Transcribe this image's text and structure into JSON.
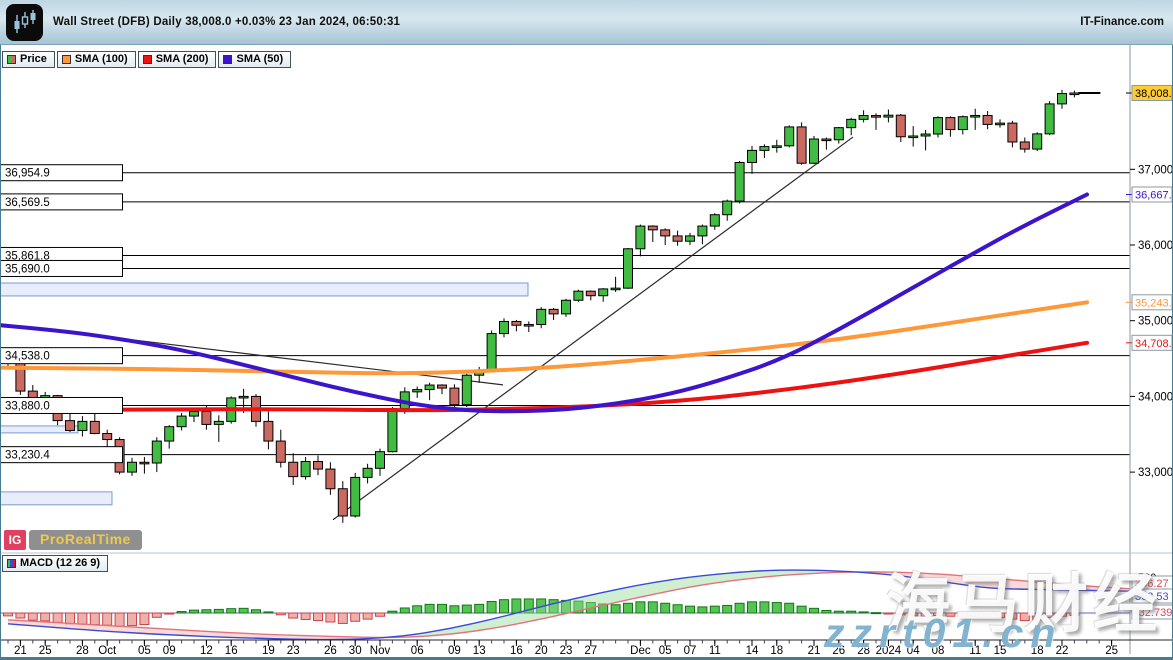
{
  "header": {
    "instrument": "Wall Street (DFB)",
    "timeframe": "Daily",
    "last_price": "38,008.0",
    "change_pct": "+0.03%",
    "datetime": "23 Jan 2024, 06:50:31",
    "brand": "IT-Finance.com"
  },
  "legend": {
    "tabs": [
      {
        "label": "Price",
        "type": "dual",
        "colors": [
          "#41bb41",
          "#c96a62"
        ]
      },
      {
        "label": "SMA (100)",
        "type": "solid",
        "colors": [
          "#ff9838"
        ]
      },
      {
        "label": "SMA (200)",
        "type": "solid",
        "colors": [
          "#ee1111"
        ]
      },
      {
        "label": "SMA (50)",
        "type": "solid",
        "colors": [
          "#3b14cc"
        ]
      }
    ]
  },
  "logo": {
    "ig": "IG",
    "prorealtime": "ProRealTime"
  },
  "indicator_tab": {
    "label": "MACD (12 26 9)",
    "icon_colors": [
      "#41bb41",
      "#3b49d8",
      "#ee1111"
    ]
  },
  "watermarks": {
    "cn": "海马财经",
    "site": "zzrt01.cn"
  },
  "chart_data": {
    "type": "candlestick",
    "title": "Wall Street (DFB) Daily",
    "ylim": [
      31950,
      38400
    ],
    "colors": {
      "up": "#41bb41",
      "down": "#c96a62",
      "wick": "#000000",
      "sma50": "#3b14cc",
      "sma100": "#ff9838",
      "sma200": "#ee1111",
      "macd_line": "#3b49d8",
      "signal_line": "#e2737c",
      "hist_up_fill": "#55c455",
      "hist_up_stroke": "#117711",
      "hist_down_fill": "#eeb0ac",
      "hist_down_stroke": "#cc4444",
      "fill_above": "rgba(150,220,150,0.45)",
      "fill_below": "rgba(245,170,170,0.45)",
      "zone_fill": "#e7edfb",
      "zone_stroke": "#7a9ad8",
      "level_line": "#000000",
      "trend_line": "#2a2a2a",
      "axis_line": "#8699a6",
      "window_border": "#487b90",
      "price_marker_bg": "#ffcc33"
    },
    "y_axis": {
      "ticks": [
        [
          37000,
          "37,000"
        ],
        [
          36000,
          "36,000"
        ],
        [
          35000,
          "35,000"
        ],
        [
          34000,
          "34,000"
        ],
        [
          33000,
          "33,000"
        ]
      ]
    },
    "x_ticks": [
      [
        1,
        "21"
      ],
      [
        3,
        "25"
      ],
      [
        6,
        "28"
      ],
      [
        8,
        "Oct"
      ],
      [
        11,
        "05"
      ],
      [
        13,
        "09"
      ],
      [
        16,
        "12"
      ],
      [
        18,
        "16"
      ],
      [
        21,
        "19"
      ],
      [
        23,
        "23"
      ],
      [
        26,
        "26"
      ],
      [
        28,
        "30"
      ],
      [
        30,
        "Nov"
      ],
      [
        33,
        "06"
      ],
      [
        36,
        "09"
      ],
      [
        38,
        "13"
      ],
      [
        41,
        "16"
      ],
      [
        43,
        "20"
      ],
      [
        45,
        "23"
      ],
      [
        47,
        "27"
      ],
      [
        51,
        "Dec"
      ],
      [
        53,
        "05"
      ],
      [
        55,
        "07"
      ],
      [
        57,
        "11"
      ],
      [
        60,
        "14"
      ],
      [
        62,
        "18"
      ],
      [
        65,
        "21"
      ],
      [
        67,
        "26"
      ],
      [
        69,
        "28"
      ],
      [
        71,
        "2024"
      ],
      [
        73,
        "04"
      ],
      [
        75,
        "08"
      ],
      [
        78,
        "11"
      ],
      [
        80,
        "15"
      ],
      [
        83,
        "18"
      ],
      [
        85,
        "22"
      ],
      [
        89,
        "25"
      ]
    ],
    "candles": [
      [
        34500,
        34560,
        34380,
        34440
      ],
      [
        34440,
        34460,
        34020,
        34070
      ],
      [
        34070,
        34150,
        33880,
        33960
      ],
      [
        33960,
        34060,
        33850,
        34010
      ],
      [
        34010,
        34020,
        33620,
        33680
      ],
      [
        33680,
        33850,
        33530,
        33550
      ],
      [
        33550,
        33740,
        33470,
        33670
      ],
      [
        33670,
        33900,
        33500,
        33510
      ],
      [
        33510,
        33560,
        33300,
        33430
      ],
      [
        33430,
        33460,
        32970,
        33000
      ],
      [
        33000,
        33190,
        32950,
        33130
      ],
      [
        33130,
        33200,
        32980,
        33120
      ],
      [
        33120,
        33460,
        33000,
        33410
      ],
      [
        33410,
        33620,
        33310,
        33600
      ],
      [
        33600,
        33780,
        33550,
        33740
      ],
      [
        33740,
        33850,
        33660,
        33800
      ],
      [
        33800,
        33880,
        33560,
        33630
      ],
      [
        33630,
        33750,
        33400,
        33670
      ],
      [
        33670,
        34000,
        33640,
        33980
      ],
      [
        33980,
        34100,
        33780,
        34000
      ],
      [
        34000,
        34030,
        33600,
        33670
      ],
      [
        33670,
        33800,
        33300,
        33410
      ],
      [
        33410,
        33560,
        33060,
        33130
      ],
      [
        33130,
        33250,
        32830,
        32940
      ],
      [
        32940,
        33200,
        32900,
        33140
      ],
      [
        33140,
        33220,
        32960,
        33040
      ],
      [
        33040,
        33130,
        32700,
        32780
      ],
      [
        32780,
        32880,
        32330,
        32420
      ],
      [
        32420,
        32990,
        32400,
        32930
      ],
      [
        32930,
        33110,
        32850,
        33050
      ],
      [
        33050,
        33310,
        32950,
        33270
      ],
      [
        33270,
        33860,
        33260,
        33840
      ],
      [
        33840,
        34120,
        33770,
        34060
      ],
      [
        34060,
        34130,
        33980,
        34090
      ],
      [
        34090,
        34180,
        33950,
        34150
      ],
      [
        34150,
        34160,
        34030,
        34110
      ],
      [
        34110,
        34160,
        33860,
        33890
      ],
      [
        33890,
        34300,
        33860,
        34280
      ],
      [
        34280,
        34390,
        34180,
        34340
      ],
      [
        34340,
        34870,
        34330,
        34830
      ],
      [
        34830,
        35030,
        34780,
        34990
      ],
      [
        34990,
        35010,
        34860,
        34940
      ],
      [
        34940,
        34990,
        34850,
        34950
      ],
      [
        34950,
        35180,
        34900,
        35150
      ],
      [
        35150,
        35170,
        35010,
        35090
      ],
      [
        35090,
        35290,
        35050,
        35270
      ],
      [
        35270,
        35410,
        35250,
        35390
      ],
      [
        35390,
        35400,
        35270,
        35330
      ],
      [
        35330,
        35430,
        35250,
        35420
      ],
      [
        35420,
        35580,
        35380,
        35430
      ],
      [
        35430,
        35960,
        35420,
        35950
      ],
      [
        35950,
        36270,
        35850,
        36250
      ],
      [
        36250,
        36260,
        36040,
        36200
      ],
      [
        36200,
        36220,
        36000,
        36120
      ],
      [
        36120,
        36190,
        35990,
        36050
      ],
      [
        36050,
        36160,
        36000,
        36120
      ],
      [
        36120,
        36270,
        36010,
        36250
      ],
      [
        36250,
        36420,
        36200,
        36400
      ],
      [
        36400,
        36600,
        36320,
        36580
      ],
      [
        36580,
        37110,
        36550,
        37090
      ],
      [
        37090,
        37310,
        36940,
        37250
      ],
      [
        37250,
        37330,
        37150,
        37300
      ],
      [
        37300,
        37390,
        37220,
        37310
      ],
      [
        37310,
        37580,
        37290,
        37560
      ],
      [
        37560,
        37620,
        37060,
        37080
      ],
      [
        37080,
        37440,
        37070,
        37400
      ],
      [
        37400,
        37420,
        37260,
        37390
      ],
      [
        37390,
        37560,
        37340,
        37550
      ],
      [
        37550,
        37680,
        37450,
        37660
      ],
      [
        37660,
        37780,
        37620,
        37710
      ],
      [
        37710,
        37740,
        37520,
        37690
      ],
      [
        37690,
        37790,
        37620,
        37715
      ],
      [
        37715,
        37730,
        37360,
        37430
      ],
      [
        37430,
        37570,
        37300,
        37440
      ],
      [
        37440,
        37520,
        37250,
        37466
      ],
      [
        37466,
        37700,
        37420,
        37683
      ],
      [
        37683,
        37700,
        37430,
        37525
      ],
      [
        37525,
        37710,
        37460,
        37695
      ],
      [
        37695,
        37800,
        37520,
        37711
      ],
      [
        37711,
        37770,
        37530,
        37593
      ],
      [
        37593,
        37660,
        37550,
        37610
      ],
      [
        37610,
        37640,
        37290,
        37361
      ],
      [
        37361,
        37420,
        37220,
        37267
      ],
      [
        37267,
        37490,
        37240,
        37468
      ],
      [
        37468,
        37900,
        37450,
        37864
      ],
      [
        37864,
        38050,
        37800,
        38001
      ],
      [
        38001,
        38040,
        37950,
        38008
      ]
    ],
    "sma50": {
      "points": [
        [
          0,
          34940
        ],
        [
          60,
          34870
        ],
        [
          120,
          34760
        ],
        [
          180,
          34620
        ],
        [
          240,
          34430
        ],
        [
          300,
          34230
        ],
        [
          360,
          34040
        ],
        [
          420,
          33880
        ],
        [
          470,
          33810
        ],
        [
          520,
          33800
        ],
        [
          570,
          33830
        ],
        [
          620,
          33910
        ],
        [
          670,
          34030
        ],
        [
          720,
          34210
        ],
        [
          780,
          34480
        ],
        [
          840,
          34890
        ],
        [
          900,
          35340
        ],
        [
          960,
          35790
        ],
        [
          1020,
          36230
        ],
        [
          1087,
          36667
        ]
      ],
      "marker": {
        "label": "36,667..",
        "price": 36667
      }
    },
    "sma100": {
      "points": [
        [
          0,
          34380
        ],
        [
          100,
          34370
        ],
        [
          200,
          34350
        ],
        [
          300,
          34320
        ],
        [
          400,
          34300
        ],
        [
          480,
          34330
        ],
        [
          560,
          34390
        ],
        [
          640,
          34480
        ],
        [
          720,
          34580
        ],
        [
          800,
          34690
        ],
        [
          880,
          34830
        ],
        [
          960,
          34990
        ],
        [
          1020,
          35110
        ],
        [
          1087,
          35243
        ]
      ],
      "marker": {
        "label": "35,243..",
        "price": 35243
      }
    },
    "sma200": {
      "points": [
        [
          0,
          33820
        ],
        [
          150,
          33830
        ],
        [
          300,
          33830
        ],
        [
          420,
          33815
        ],
        [
          500,
          33830
        ],
        [
          600,
          33870
        ],
        [
          700,
          33960
        ],
        [
          800,
          34110
        ],
        [
          900,
          34300
        ],
        [
          1000,
          34520
        ],
        [
          1087,
          34708
        ]
      ],
      "marker": {
        "label": "34,708..",
        "price": 34708
      }
    },
    "price_marker": {
      "label": "38,008..",
      "price": 38008
    },
    "levels": [
      {
        "price": 36954.9,
        "label": "36,954.9"
      },
      {
        "price": 36569.5,
        "label": "36,569.5"
      },
      {
        "price": 35861.8,
        "label": "35,861.8"
      },
      {
        "price": 35690.0,
        "label": "35,690.0"
      },
      {
        "price": 34538.0,
        "label": "34,538.0"
      },
      {
        "price": 33880.0,
        "label": "33,880.0"
      },
      {
        "price": 33230.4,
        "label": "33,230.4"
      }
    ],
    "zones": [
      {
        "x1": 0,
        "x2": 528,
        "p1": 35498,
        "p2": 35327
      },
      {
        "x1": 0,
        "x2": 78,
        "p1": 33610,
        "p2": 33518
      },
      {
        "x1": 0,
        "x2": 112,
        "p1": 32739,
        "p2": 32568
      }
    ],
    "trendlines": [
      {
        "x1": 0,
        "p1": 34960,
        "x2": 503,
        "p2": 34152
      },
      {
        "x1": 333,
        "p1": 32370,
        "x2": 853,
        "p2": 37426
      }
    ],
    "macd": {
      "name": "MACD (12 26 9)",
      "hist": [
        -40,
        -70,
        -100,
        -110,
        -130,
        -150,
        -155,
        -160,
        -170,
        -185,
        -175,
        -160,
        -60,
        -15,
        20,
        40,
        45,
        50,
        60,
        65,
        45,
        15,
        -25,
        -70,
        -90,
        -105,
        -125,
        -145,
        -115,
        -85,
        -45,
        25,
        70,
        100,
        120,
        120,
        100,
        110,
        120,
        160,
        185,
        195,
        195,
        195,
        185,
        175,
        165,
        145,
        125,
        115,
        135,
        155,
        155,
        135,
        115,
        95,
        85,
        95,
        105,
        135,
        155,
        155,
        145,
        135,
        95,
        65,
        35,
        25,
        25,
        15,
        5,
        -5,
        -25,
        -40,
        -45,
        -35,
        -45,
        -45,
        -45,
        -55,
        -65,
        -85,
        -105,
        -95,
        -65,
        -45,
        -33
      ],
      "macd_points": [
        [
          8,
          -150
        ],
        [
          80,
          -230
        ],
        [
          160,
          -300
        ],
        [
          250,
          -350
        ],
        [
          340,
          -378
        ],
        [
          400,
          -330
        ],
        [
          450,
          -220
        ],
        [
          500,
          -60
        ],
        [
          550,
          120
        ],
        [
          600,
          280
        ],
        [
          650,
          420
        ],
        [
          700,
          520
        ],
        [
          760,
          590
        ],
        [
          800,
          600
        ],
        [
          850,
          580
        ],
        [
          900,
          520
        ],
        [
          950,
          420
        ],
        [
          990,
          340
        ],
        [
          1030,
          330
        ],
        [
          1080,
          315
        ],
        [
          1130,
          303
        ]
      ],
      "signal_points": [
        [
          8,
          -95
        ],
        [
          80,
          -150
        ],
        [
          160,
          -220
        ],
        [
          250,
          -290
        ],
        [
          340,
          -330
        ],
        [
          400,
          -345
        ],
        [
          450,
          -300
        ],
        [
          500,
          -200
        ],
        [
          550,
          -60
        ],
        [
          600,
          100
        ],
        [
          650,
          250
        ],
        [
          700,
          390
        ],
        [
          760,
          500
        ],
        [
          820,
          560
        ],
        [
          870,
          575
        ],
        [
          920,
          560
        ],
        [
          970,
          510
        ],
        [
          1020,
          450
        ],
        [
          1080,
          380
        ],
        [
          1130,
          336
        ]
      ],
      "axis_tick": {
        "value": 500,
        "label": "500"
      },
      "value_labels": [
        {
          "label": "336.27",
          "color": "#dd4455",
          "y": 583
        },
        {
          "label": "303.53",
          "color": "#3b49d8",
          "y": 596
        },
        {
          "label": "-32.739",
          "color": "#dd4455",
          "y": 612
        }
      ]
    }
  }
}
